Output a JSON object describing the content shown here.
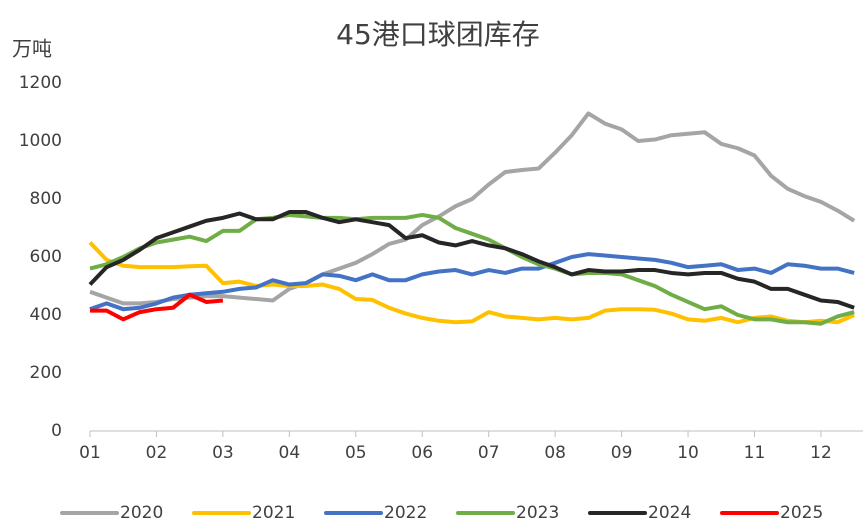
{
  "chart_data": {
    "type": "line",
    "title": "45港口球团库存",
    "y_label": "万吨",
    "x": [
      1,
      1.25,
      1.5,
      1.75,
      2,
      2.25,
      2.5,
      2.75,
      3,
      3.25,
      3.5,
      3.75,
      4,
      4.25,
      4.5,
      4.75,
      5,
      5.25,
      5.5,
      5.75,
      6,
      6.25,
      6.5,
      6.75,
      7,
      7.25,
      7.5,
      7.75,
      8,
      8.25,
      8.5,
      8.75,
      9,
      9.25,
      9.5,
      9.75,
      10,
      10.25,
      10.5,
      10.75,
      11,
      11.25,
      11.5,
      11.75,
      12,
      12.25,
      12.5
    ],
    "xlim": [
      1,
      12.63
    ],
    "xticks": [
      {
        "value": 1,
        "label": "01"
      },
      {
        "value": 2,
        "label": "02"
      },
      {
        "value": 3,
        "label": "03"
      },
      {
        "value": 4,
        "label": "04"
      },
      {
        "value": 5,
        "label": "05"
      },
      {
        "value": 6,
        "label": "06"
      },
      {
        "value": 7,
        "label": "07"
      },
      {
        "value": 8,
        "label": "08"
      },
      {
        "value": 9,
        "label": "09"
      },
      {
        "value": 10,
        "label": "10"
      },
      {
        "value": 11,
        "label": "11"
      },
      {
        "value": 12,
        "label": "12"
      }
    ],
    "ylim": [
      0,
      1200
    ],
    "yticks": [
      0,
      200,
      400,
      600,
      800,
      1000,
      1200
    ],
    "grid": false,
    "legend": "bottom",
    "series": [
      {
        "name": "2020",
        "color": "#a5a5a5",
        "values": [
          480,
          460,
          440,
          440,
          445,
          455,
          460,
          465,
          465,
          460,
          455,
          450,
          490,
          510,
          540,
          560,
          580,
          610,
          645,
          660,
          710,
          740,
          775,
          800,
          850,
          893,
          900,
          905,
          960,
          1020,
          1095,
          1060,
          1040,
          1000,
          1005,
          1020,
          1025,
          1030,
          990,
          975,
          950,
          880,
          835,
          810,
          790,
          760,
          725
        ]
      },
      {
        "name": "2021",
        "color": "#ffc000",
        "values": [
          650,
          590,
          570,
          565,
          565,
          565,
          568,
          570,
          510,
          515,
          500,
          505,
          500,
          500,
          505,
          490,
          455,
          452,
          425,
          405,
          390,
          380,
          375,
          378,
          410,
          395,
          390,
          385,
          390,
          385,
          390,
          415,
          420,
          420,
          418,
          405,
          385,
          380,
          390,
          375,
          390,
          395,
          380,
          375,
          380,
          375,
          400
        ]
      },
      {
        "name": "2022",
        "color": "#4472c4",
        "values": [
          420,
          440,
          420,
          425,
          440,
          460,
          470,
          475,
          480,
          490,
          495,
          520,
          505,
          510,
          540,
          535,
          520,
          540,
          520,
          520,
          540,
          550,
          555,
          540,
          555,
          545,
          560,
          560,
          580,
          600,
          610,
          605,
          600,
          595,
          590,
          580,
          565,
          570,
          575,
          555,
          560,
          545,
          575,
          570,
          560,
          560,
          545
        ]
      },
      {
        "name": "2023",
        "color": "#70ad47",
        "values": [
          560,
          575,
          600,
          630,
          650,
          660,
          670,
          655,
          690,
          690,
          730,
          735,
          745,
          740,
          735,
          735,
          730,
          735,
          735,
          735,
          745,
          735,
          700,
          680,
          660,
          630,
          600,
          575,
          560,
          540,
          545,
          545,
          540,
          520,
          500,
          470,
          445,
          420,
          430,
          400,
          385,
          385,
          375,
          375,
          370,
          395,
          410
        ]
      },
      {
        "name": "2024",
        "color": "#262626",
        "values": [
          505,
          565,
          590,
          625,
          665,
          685,
          705,
          725,
          735,
          750,
          730,
          730,
          755,
          755,
          735,
          720,
          730,
          720,
          710,
          665,
          675,
          650,
          640,
          655,
          640,
          630,
          610,
          585,
          565,
          540,
          555,
          550,
          550,
          555,
          555,
          545,
          540,
          545,
          545,
          525,
          515,
          490,
          490,
          470,
          450,
          445,
          425
        ]
      },
      {
        "name": "2025",
        "color": "#ff0000",
        "values": [
          415,
          415,
          385,
          410,
          420,
          425,
          470,
          445,
          450,
          null,
          null,
          null,
          null,
          null,
          null,
          null,
          null,
          null,
          null,
          null,
          null,
          null,
          null,
          null,
          null,
          null,
          null,
          null,
          null,
          null,
          null,
          null,
          null,
          null,
          null,
          null,
          null,
          null,
          null,
          null,
          null,
          null,
          null,
          null,
          null,
          null,
          null
        ]
      }
    ]
  }
}
